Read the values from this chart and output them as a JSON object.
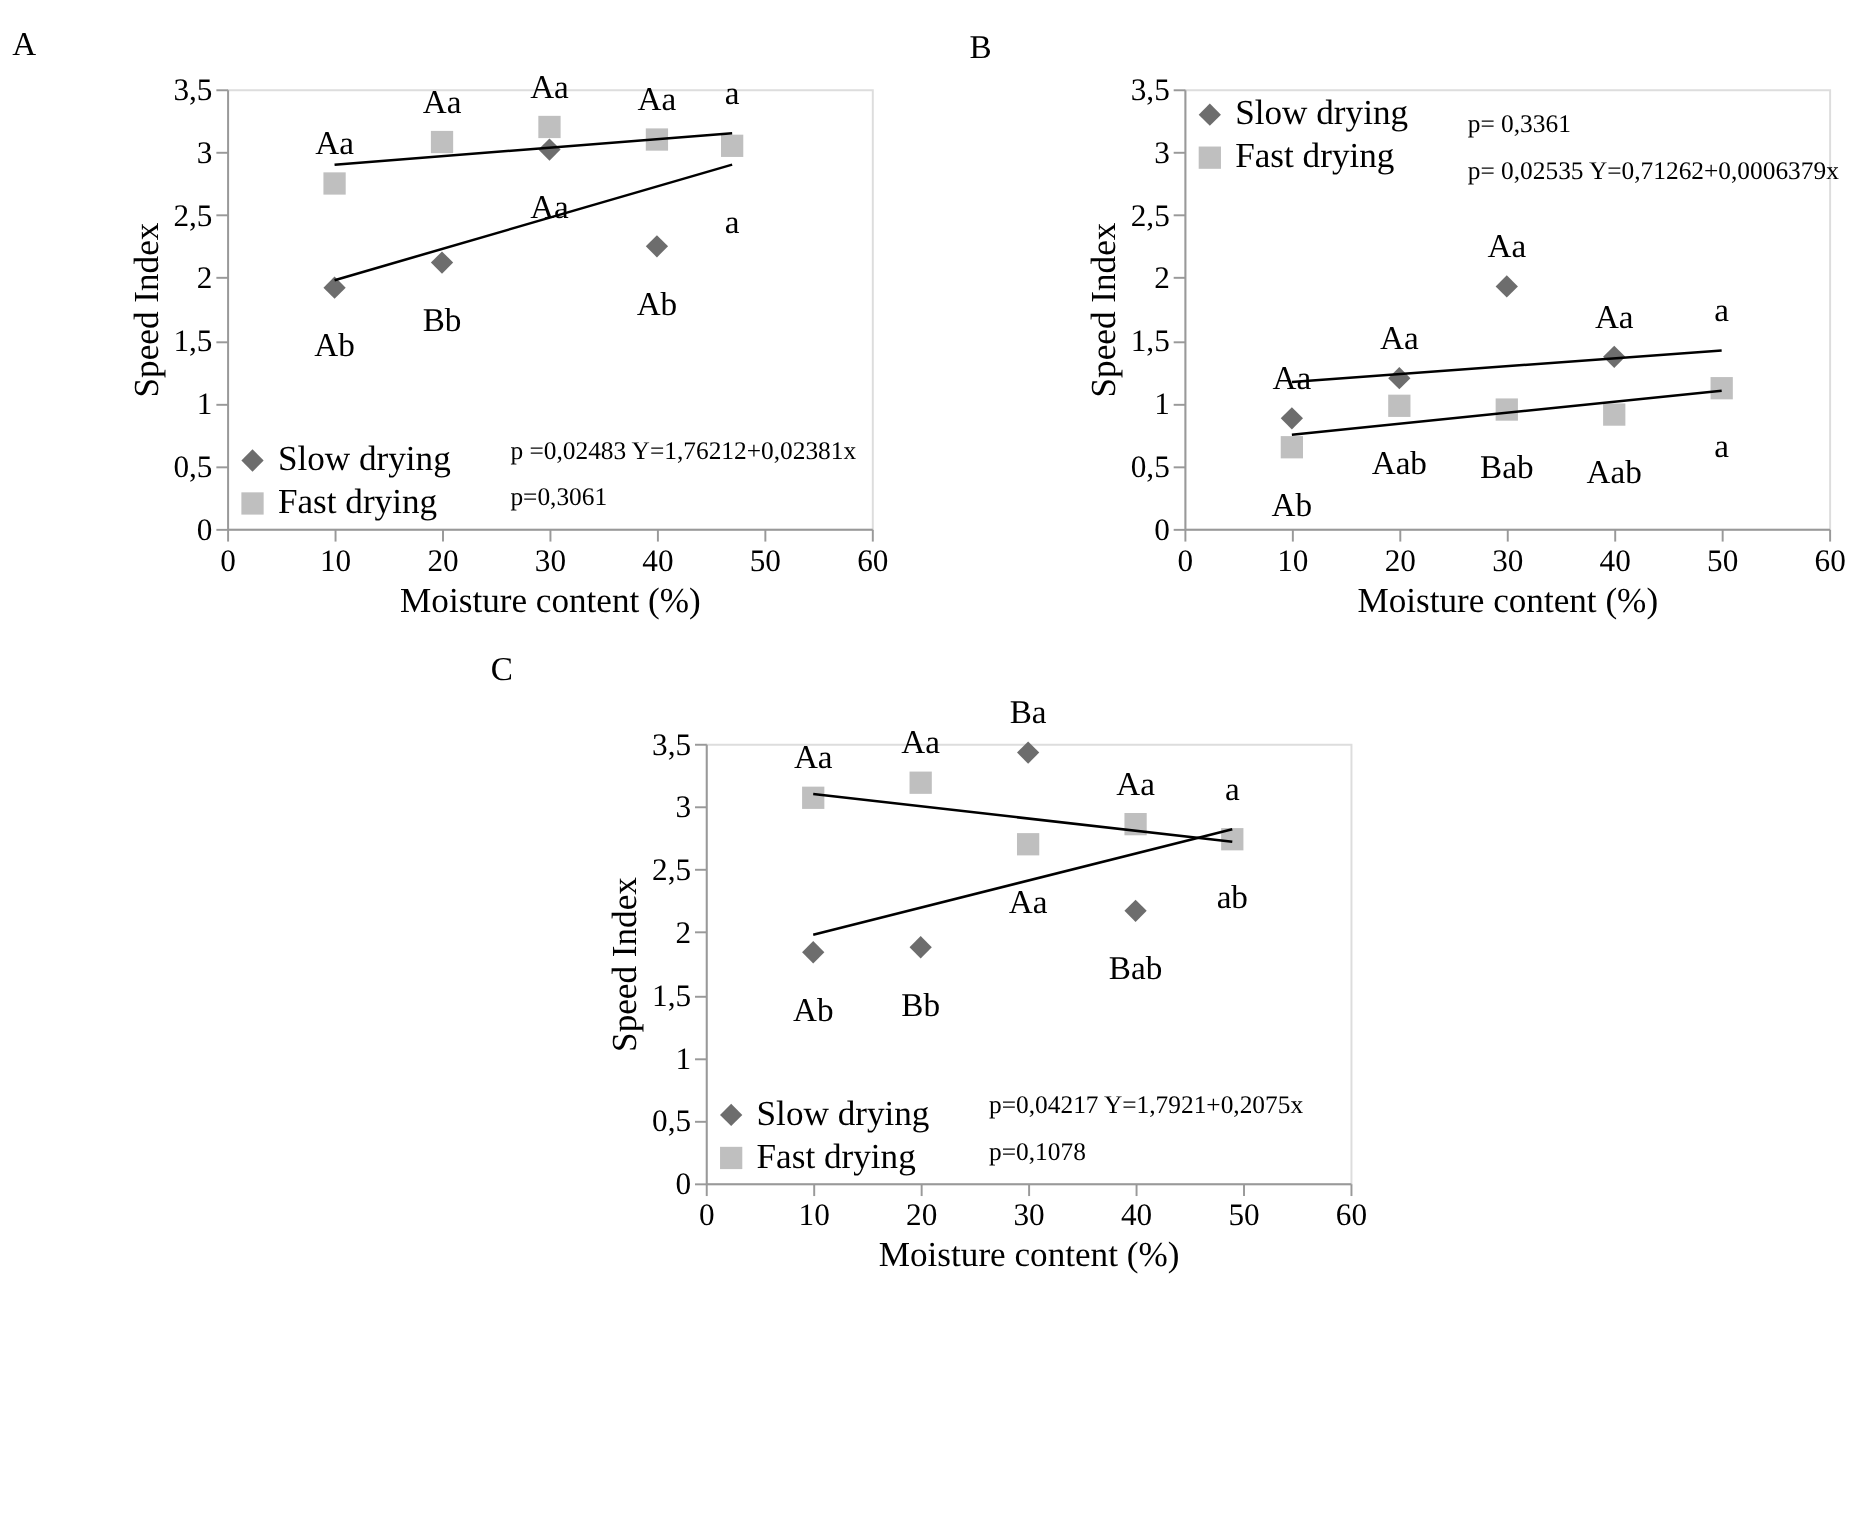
{
  "chart_data": [
    {
      "type": "scatter",
      "title": "A",
      "xlabel": "Moisture content (%)",
      "ylabel": "Speed Index",
      "xlim": [
        0,
        60
      ],
      "ylim": [
        0,
        3.5
      ],
      "xticks": [
        0,
        10,
        20,
        30,
        40,
        50,
        60
      ],
      "yticks": [
        0,
        {
          "value": 0.5,
          "label": "0,5"
        },
        1,
        {
          "value": 1.5,
          "label": "1,5"
        },
        2,
        {
          "value": 2.5,
          "label": "2,5"
        },
        3,
        {
          "value": 3.5,
          "label": "3,5"
        }
      ],
      "grid": false,
      "legend": "bottom left",
      "series": [
        {
          "name": "Slow drying",
          "color": "#6d6d6d",
          "marker": "diamond",
          "x": [
            10,
            20,
            30,
            40
          ],
          "values": [
            1.92,
            2.12,
            3.02,
            2.25
          ]
        },
        {
          "name": "Fast drying",
          "color": "#bfbfbf",
          "marker": "square",
          "x": [
            10,
            20,
            30,
            40,
            47
          ],
          "values": [
            2.75,
            3.08,
            3.2,
            3.1,
            3.05
          ]
        },
        {
          "type": "line",
          "color": "#000000",
          "x": [
            10,
            47
          ],
          "values": [
            2.9,
            3.15
          ]
        },
        {
          "type": "line",
          "color": "#000000",
          "x": [
            10,
            47
          ],
          "values": [
            1.98,
            2.9
          ]
        }
      ],
      "annotations": [
        "p =0,02483     Y=1,76212+0,02381x",
        "p=0,3061",
        {
          "text": "Aa",
          "x": 10,
          "y": 2.75
        },
        {
          "text": "Aa",
          "x": 20,
          "y": 3.08
        },
        {
          "text": "Aa",
          "x": 30,
          "y": 3.2
        },
        {
          "text": "Aa",
          "x": 40,
          "y": 3.1
        },
        {
          "text": "a",
          "x": 47,
          "y": 3.15
        },
        {
          "text": "Aa",
          "x": 30,
          "y": 3.02
        },
        {
          "text": "a",
          "x": 47,
          "y": 2.9
        },
        {
          "text": "Ab",
          "x": 10,
          "y": 1.92
        },
        {
          "text": "Bb",
          "x": 20,
          "y": 2.12
        },
        {
          "text": "Ab",
          "x": 40,
          "y": 2.25
        }
      ]
    },
    {
      "type": "scatter",
      "title": "B",
      "xlabel": "Moisture content (%)",
      "ylabel": "Speed Index",
      "xlim": [
        0,
        60
      ],
      "ylim": [
        0,
        3.5
      ],
      "xticks": [
        0,
        10,
        20,
        30,
        40,
        50,
        60
      ],
      "yticks": [
        0,
        {
          "value": 0.5,
          "label": "0,5"
        },
        1,
        {
          "value": 1.5,
          "label": "1,5"
        },
        2,
        {
          "value": 2.5,
          "label": "2,5"
        },
        3,
        {
          "value": 3.5,
          "label": "3,5"
        }
      ],
      "grid": false,
      "legend": "top left",
      "series": [
        {
          "name": "Slow drying",
          "color": "#6d6d6d",
          "marker": "diamond",
          "x": [
            10,
            20,
            30,
            40
          ],
          "values": [
            0.88,
            1.2,
            1.93,
            1.37
          ]
        },
        {
          "name": "Fast drying",
          "color": "#bfbfbf",
          "marker": "square",
          "x": [
            10,
            20,
            30,
            40,
            50
          ],
          "values": [
            0.65,
            0.98,
            0.95,
            0.91,
            1.12
          ]
        },
        {
          "type": "line",
          "color": "#000000",
          "x": [
            10,
            50
          ],
          "values": [
            1.17,
            1.42
          ]
        },
        {
          "type": "line",
          "color": "#000000",
          "x": [
            10,
            50
          ],
          "values": [
            0.75,
            1.1
          ]
        }
      ],
      "annotations": [
        "p=  0,3361",
        "p= 0,02535 Y=0,71262+0,0006379x",
        {
          "text": "Aa",
          "x": 30,
          "y": 1.93
        },
        {
          "text": "Aa",
          "x": 20,
          "y": 1.2
        },
        {
          "text": "Aa",
          "x": 40,
          "y": 1.37
        },
        {
          "text": "Aa",
          "x": 10,
          "y": 0.88
        },
        {
          "text": "a",
          "x": 50,
          "y": 1.42
        },
        {
          "text": "Aab",
          "x": 20,
          "y": 0.98
        },
        {
          "text": "Bab",
          "x": 30,
          "y": 0.95
        },
        {
          "text": "Aab",
          "x": 40,
          "y": 0.91
        },
        {
          "text": "a",
          "x": 50,
          "y": 1.12
        },
        {
          "text": "Ab",
          "x": 10,
          "y": 0.65
        }
      ]
    },
    {
      "type": "scatter",
      "title": "C",
      "xlabel": "Moisture content (%)",
      "ylabel": "Speed Index",
      "xlim": [
        0,
        60
      ],
      "ylim": [
        0,
        3.5
      ],
      "xticks": [
        0,
        10,
        20,
        30,
        40,
        50,
        60
      ],
      "yticks": [
        0,
        {
          "value": 0.5,
          "label": "0,5"
        },
        1,
        {
          "value": 1.5,
          "label": "1,5"
        },
        2,
        {
          "value": 2.5,
          "label": "2,5"
        },
        3,
        {
          "value": 3.5,
          "label": "3,5"
        }
      ],
      "grid": false,
      "legend": "bottom left",
      "series": [
        {
          "name": "Slow drying",
          "color": "#6d6d6d",
          "marker": "diamond",
          "x": [
            10,
            20,
            30,
            40
          ],
          "values": [
            1.84,
            1.88,
            3.43,
            2.17
          ]
        },
        {
          "name": "Fast drying",
          "color": "#bfbfbf",
          "marker": "square",
          "x": [
            10,
            20,
            30,
            40,
            49
          ],
          "values": [
            3.07,
            3.19,
            2.7,
            2.86,
            2.74
          ]
        },
        {
          "type": "line",
          "color": "#000000",
          "x": [
            10,
            49
          ],
          "values": [
            3.1,
            2.72
          ]
        },
        {
          "type": "line",
          "color": "#000000",
          "x": [
            10,
            49
          ],
          "values": [
            1.98,
            2.82
          ]
        }
      ],
      "annotations": [
        "p=0,04217  Y=1,7921+0,2075x",
        "p=0,1078",
        {
          "text": "Aa",
          "x": 10,
          "y": 3.07
        },
        {
          "text": "Aa",
          "x": 20,
          "y": 3.19
        },
        {
          "text": "Ba",
          "x": 30,
          "y": 3.43
        },
        {
          "text": "Aa",
          "x": 40,
          "y": 2.86
        },
        {
          "text": "a",
          "x": 49,
          "y": 2.82
        },
        {
          "text": "ab",
          "x": 49,
          "y": 2.74
        },
        {
          "text": "Aa",
          "x": 30,
          "y": 2.7
        },
        {
          "text": "Bab",
          "x": 40,
          "y": 2.17
        },
        {
          "text": "Ab",
          "x": 10,
          "y": 1.84
        },
        {
          "text": "Bb",
          "x": 20,
          "y": 1.88
        }
      ]
    }
  ]
}
